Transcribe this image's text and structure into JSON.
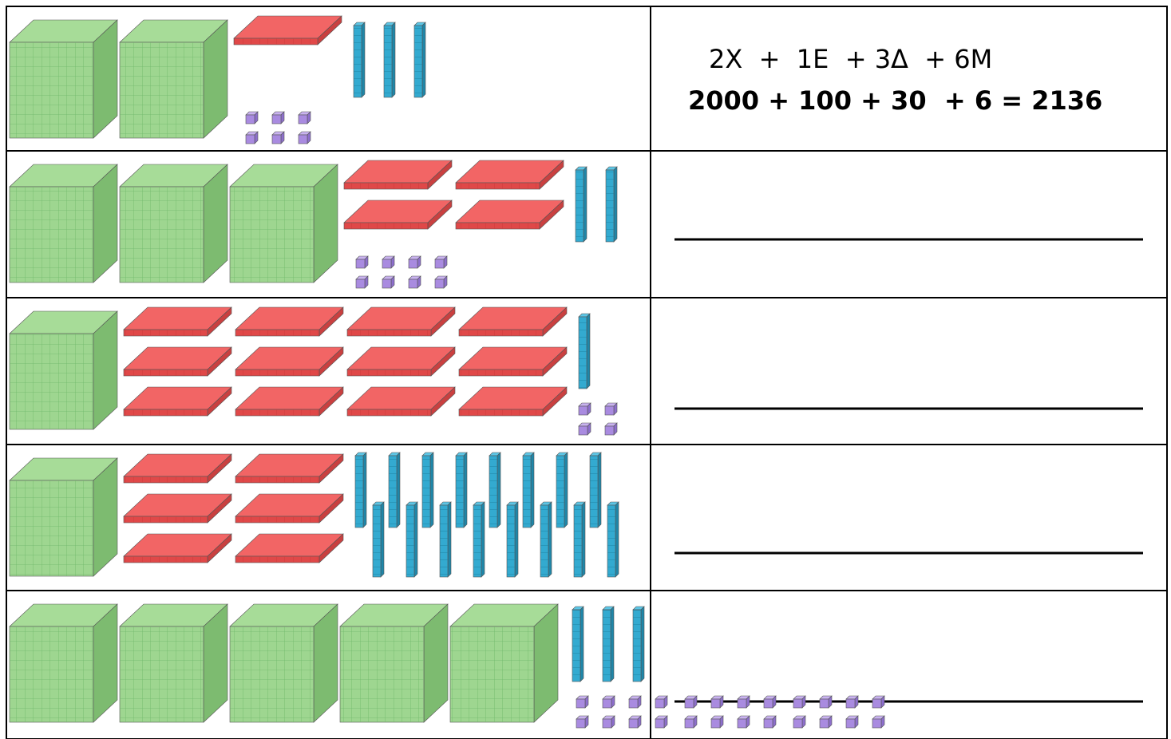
{
  "rows": [
    {
      "blocks": {
        "thousands": 2,
        "hundreds": 1,
        "tens": 3,
        "ones": 6
      },
      "answer": {
        "line1": "2X  +  1E  + 3Δ  + 6M",
        "line2": "2000 + 100 + 30  + 6 = 2136"
      }
    },
    {
      "blocks": {
        "thousands": 3,
        "hundreds": 4,
        "tens": 2,
        "ones": 8
      }
    },
    {
      "blocks": {
        "thousands": 1,
        "hundreds": 12,
        "tens": 1,
        "ones": 4
      }
    },
    {
      "blocks": {
        "thousands": 1,
        "hundreds": 6,
        "tens": 16,
        "ones": 0
      }
    },
    {
      "blocks": {
        "thousands": 5,
        "hundreds": 0,
        "tens": 3,
        "ones": 24
      }
    }
  ]
}
